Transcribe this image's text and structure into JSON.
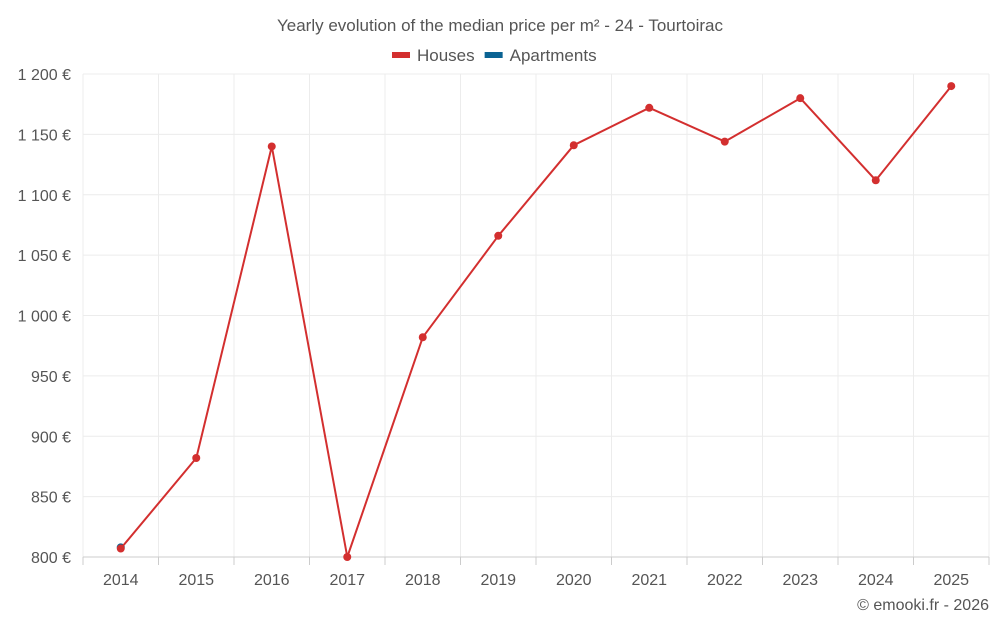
{
  "chart_data": {
    "type": "line",
    "title": "Yearly evolution of the median price per m² - 24 - Tourtoirac",
    "xlabel": "",
    "ylabel": "",
    "categories": [
      "2014",
      "2015",
      "2016",
      "2017",
      "2018",
      "2019",
      "2020",
      "2021",
      "2022",
      "2023",
      "2024",
      "2025"
    ],
    "ylim": [
      800,
      1200
    ],
    "yticks": [
      800,
      850,
      900,
      950,
      1000,
      1050,
      1100,
      1150,
      1200
    ],
    "ytick_labels": [
      "800 €",
      "850 €",
      "900 €",
      "950 €",
      "1 000 €",
      "1 050 €",
      "1 100 €",
      "1 150 €",
      "1 200 €"
    ],
    "grid": true,
    "legend_position": "top-center",
    "series": [
      {
        "name": "Houses",
        "color": "#d32f2f",
        "values": [
          807,
          882,
          1140,
          800,
          982,
          1066,
          1141,
          1172,
          1144,
          1180,
          1112,
          1190
        ]
      },
      {
        "name": "Apartments",
        "color": "#0b6393",
        "values": [
          808,
          null,
          null,
          null,
          null,
          null,
          null,
          null,
          null,
          null,
          null,
          null
        ]
      }
    ]
  },
  "credit": "© emooki.fr - 2026"
}
